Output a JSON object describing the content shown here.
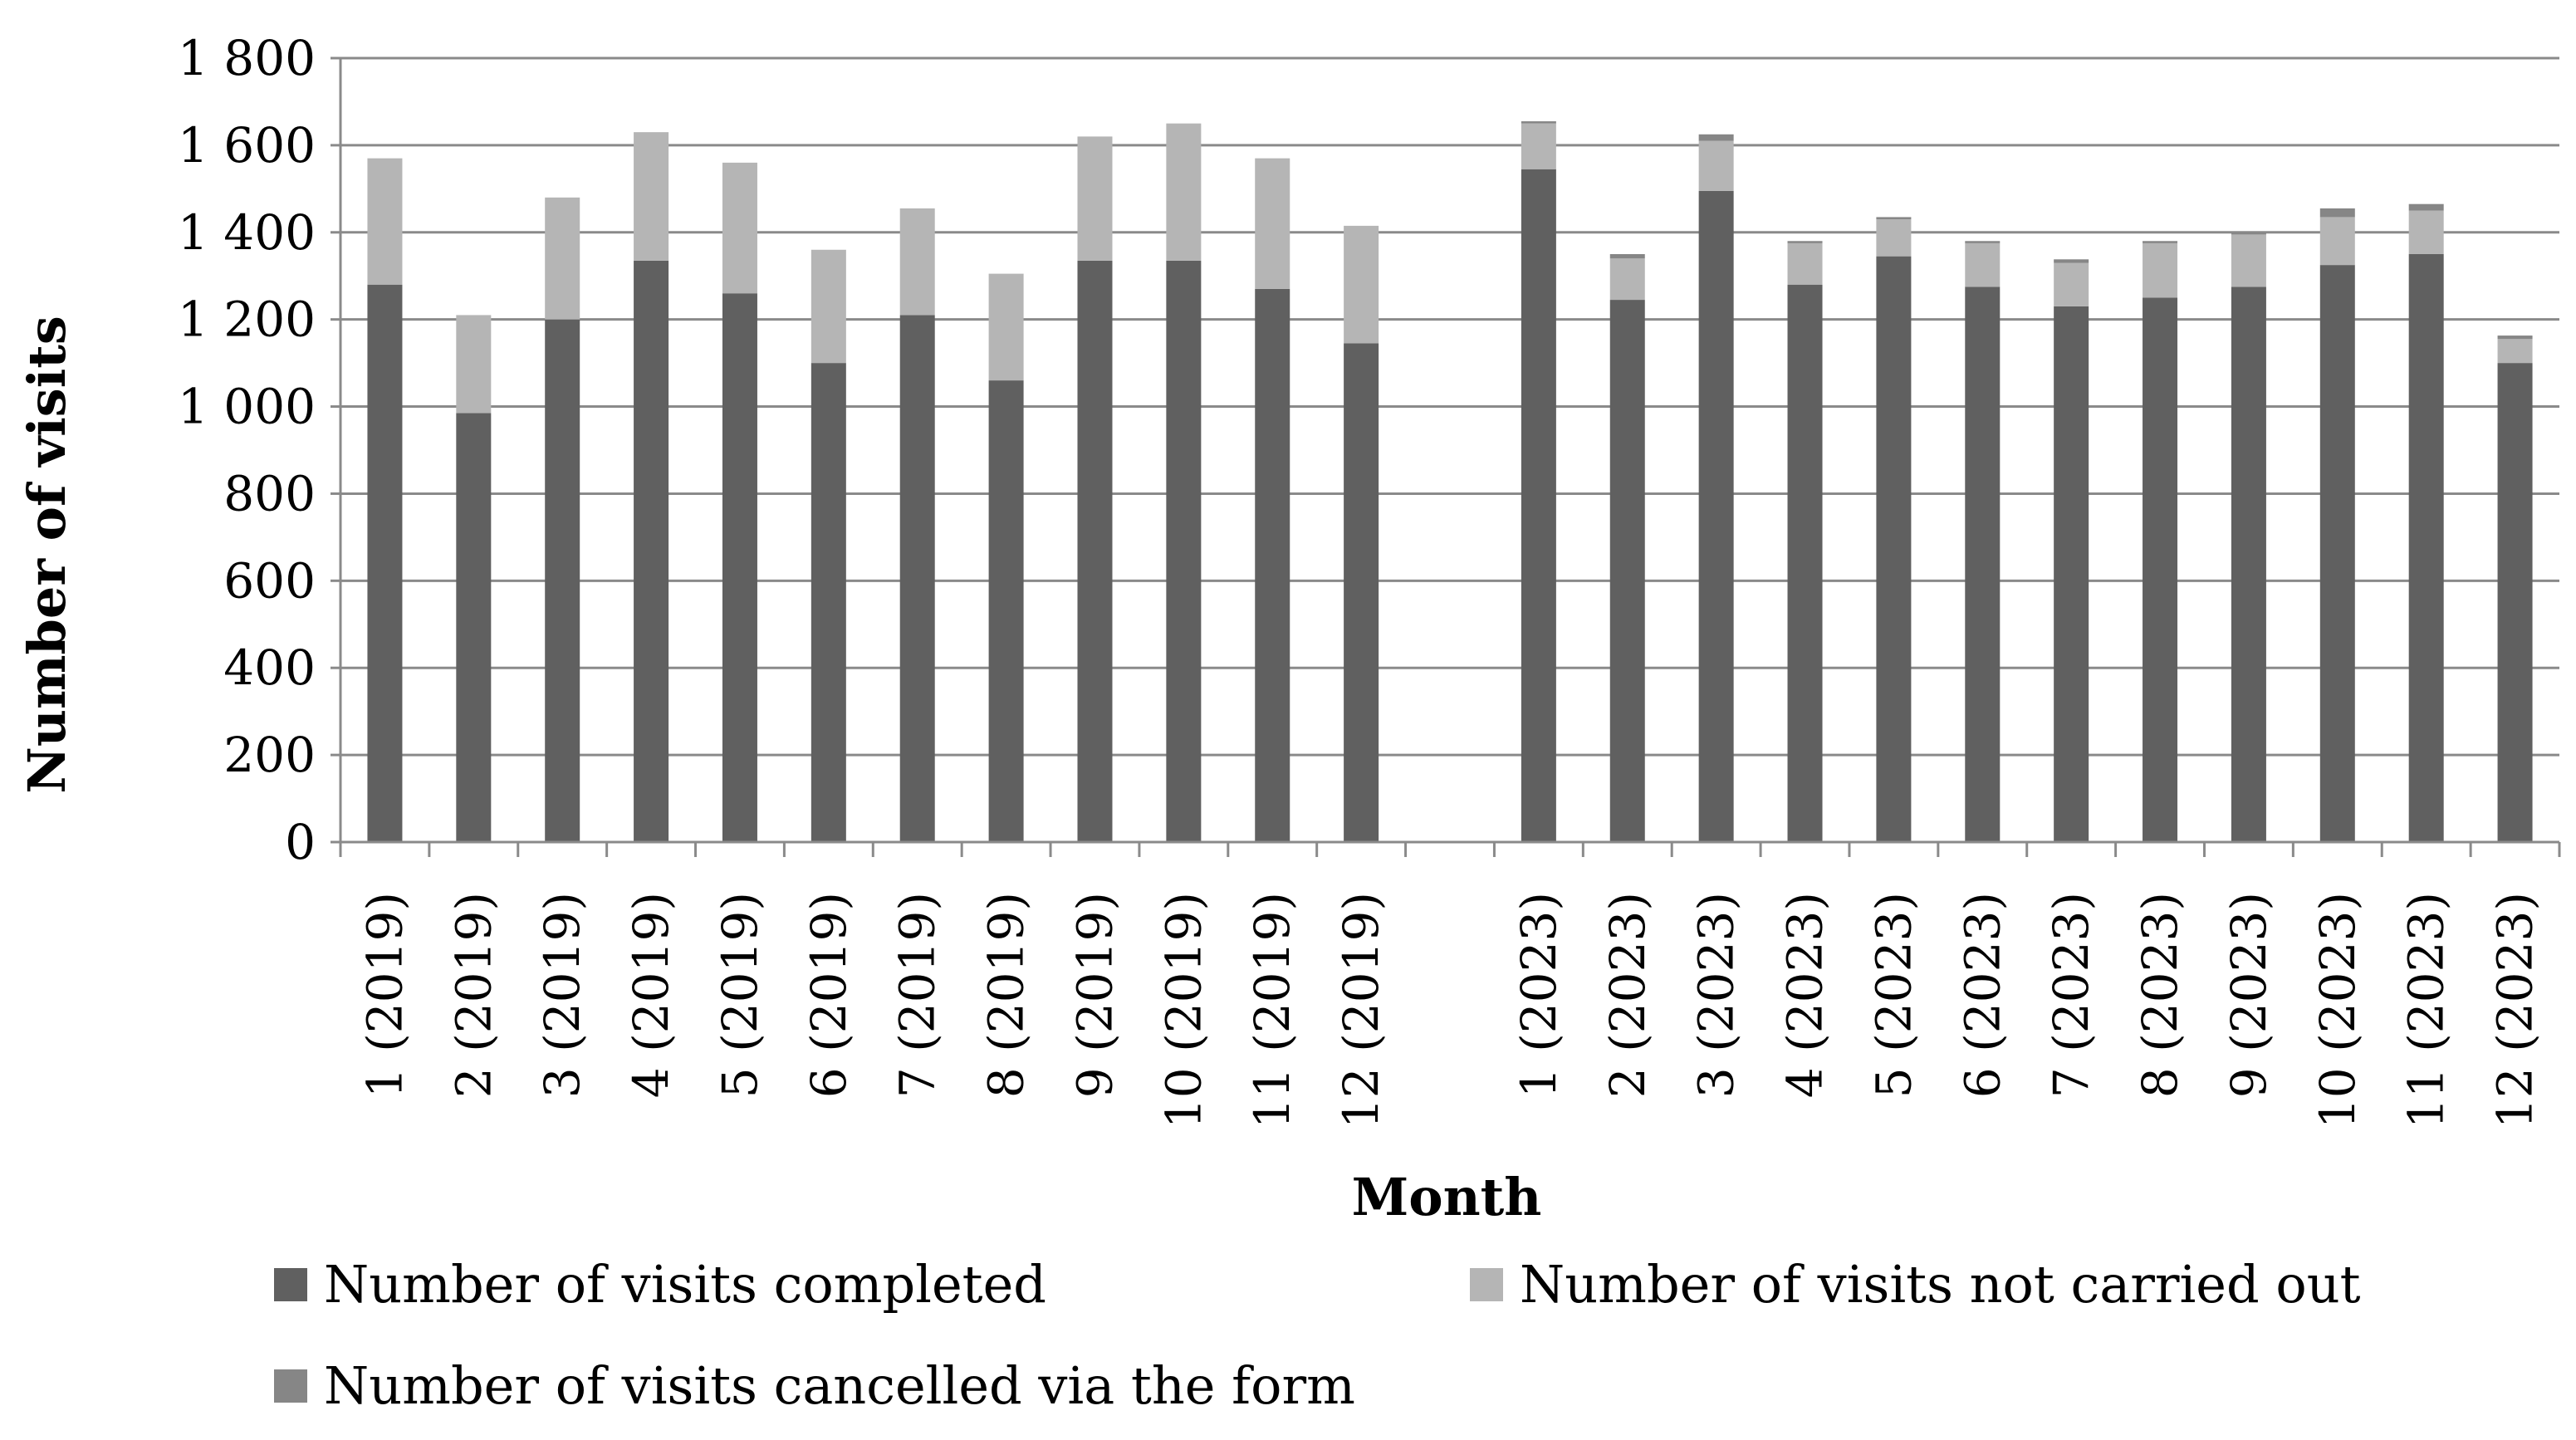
{
  "chart_data": {
    "type": "bar",
    "stacked": true,
    "xlabel": "Month",
    "ylabel": "Number of visits",
    "ylim": [
      0,
      1800
    ],
    "yticks": [
      0,
      200,
      400,
      600,
      800,
      1000,
      1200,
      1400,
      1600,
      1800
    ],
    "ytick_labels": [
      "0",
      "200",
      "400",
      "600",
      "800",
      "1 000",
      "1 200",
      "1 400",
      "1 600",
      "1 800"
    ],
    "grid": "horizontal",
    "legend_position": "bottom",
    "categories": [
      "1 (2019)",
      "2 (2019)",
      "3 (2019)",
      "4 (2019)",
      "5 (2019)",
      "6 (2019)",
      "7 (2019)",
      "8 (2019)",
      "9 (2019)",
      "10 (2019)",
      "11 (2019)",
      "12 (2019)",
      "",
      "1 (2023)",
      "2 (2023)",
      "3 (2023)",
      "4 (2023)",
      "5 (2023)",
      "6 (2023)",
      "7 (2023)",
      "8 (2023)",
      "9 (2023)",
      "10 (2023)",
      "11 (2023)",
      "12 (2023)"
    ],
    "series": [
      {
        "name": "Number of visits completed",
        "color": "#606060",
        "values": [
          1280,
          985,
          1200,
          1335,
          1260,
          1100,
          1210,
          1060,
          1335,
          1335,
          1270,
          1145,
          null,
          1545,
          1245,
          1495,
          1280,
          1345,
          1275,
          1230,
          1250,
          1275,
          1325,
          1350,
          1100
        ]
      },
      {
        "name": "Number of visits not carried out",
        "color": "#b5b5b5",
        "values": [
          290,
          225,
          280,
          295,
          300,
          260,
          245,
          245,
          285,
          315,
          300,
          270,
          null,
          105,
          95,
          115,
          95,
          85,
          100,
          100,
          125,
          120,
          110,
          100,
          55
        ]
      },
      {
        "name": "Number of visits cancelled via the form",
        "color": "#868686",
        "values": [
          0,
          0,
          0,
          0,
          0,
          0,
          0,
          0,
          0,
          0,
          0,
          0,
          null,
          5,
          10,
          15,
          5,
          5,
          5,
          8,
          5,
          5,
          20,
          15,
          8
        ]
      }
    ]
  }
}
